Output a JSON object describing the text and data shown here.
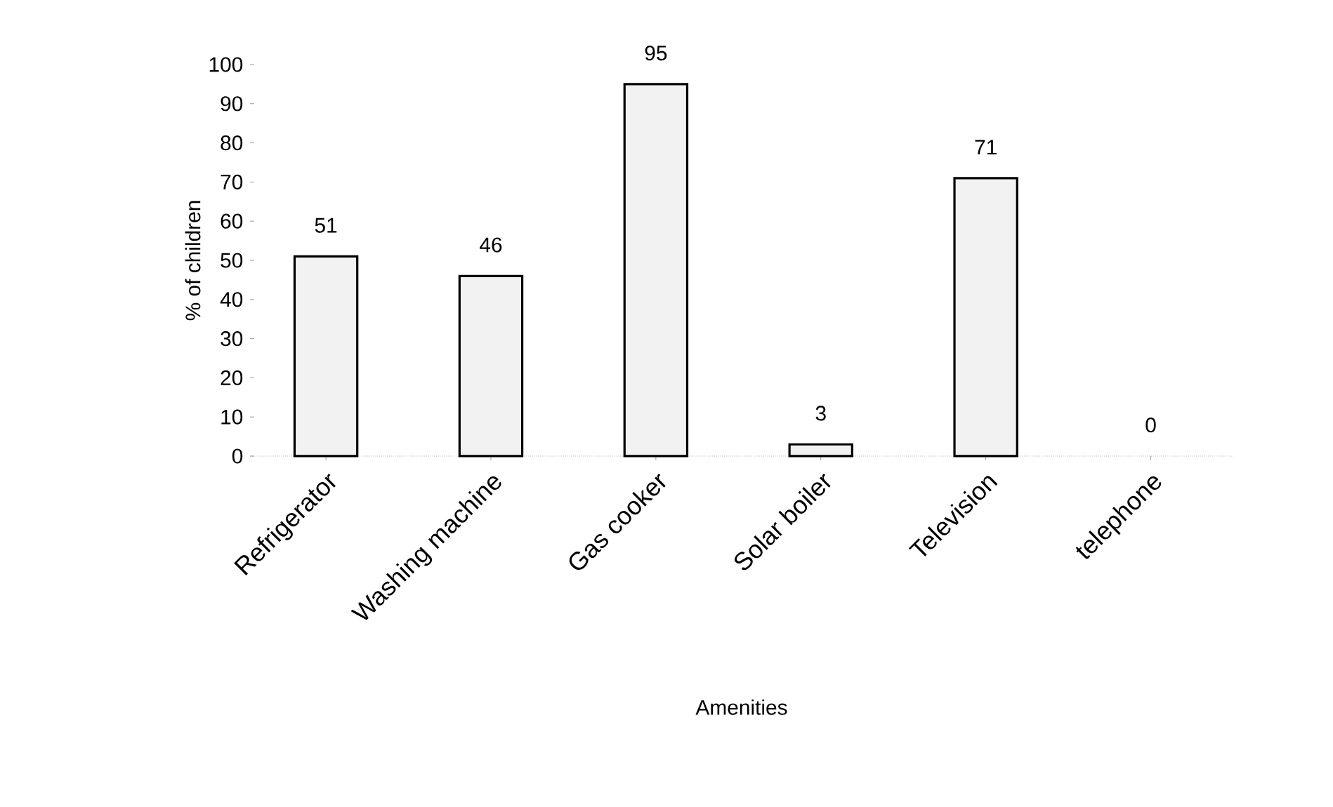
{
  "chart_data": {
    "type": "bar",
    "xlabel": "Amenities",
    "ylabel": "% of children",
    "categories": [
      "Refrigerator",
      "Washing machine",
      "Gas cooker",
      "Solar boiler",
      "Television",
      "telephone"
    ],
    "values": [
      51,
      46,
      95,
      3,
      71,
      0
    ],
    "color": "#f2f2f2",
    "ylim": [
      0,
      100
    ],
    "yticks": [
      0,
      10,
      20,
      30,
      40,
      50,
      60,
      70,
      80,
      90,
      100
    ],
    "data_labels": true
  }
}
